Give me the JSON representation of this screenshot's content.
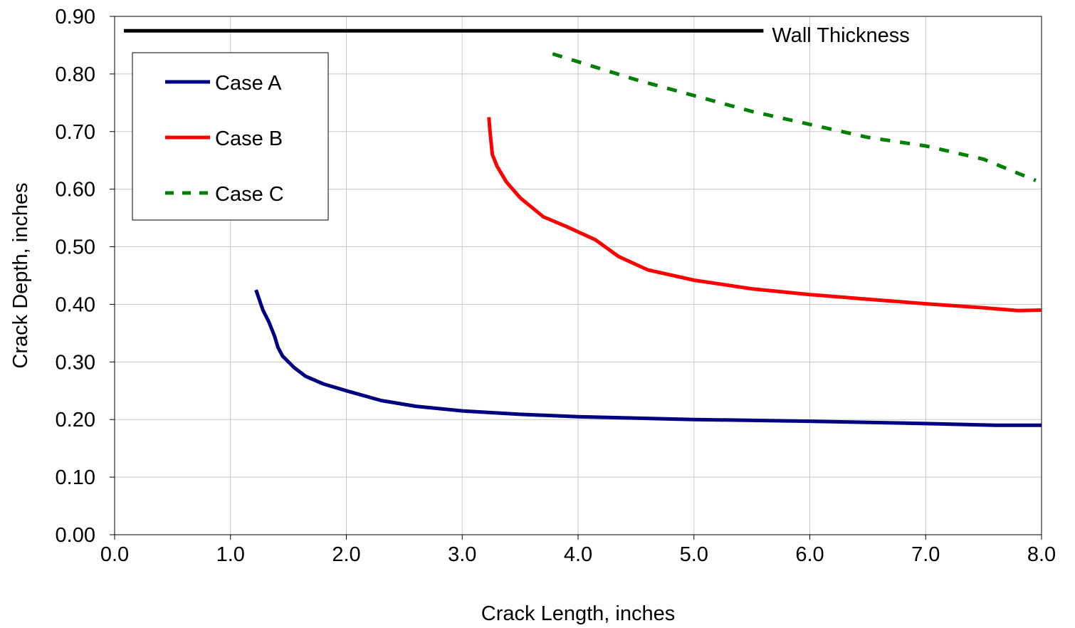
{
  "chart_data": {
    "type": "line",
    "xlabel": "Crack Length, inches",
    "ylabel": "Crack Depth, inches",
    "xlim": [
      0,
      8
    ],
    "ylim": [
      0,
      0.9
    ],
    "x_ticks": [
      "0.0",
      "1.0",
      "2.0",
      "3.0",
      "4.0",
      "5.0",
      "6.0",
      "7.0",
      "8.0"
    ],
    "y_ticks": [
      "0.00",
      "0.10",
      "0.20",
      "0.30",
      "0.40",
      "0.50",
      "0.60",
      "0.70",
      "0.80",
      "0.90"
    ],
    "grid": true,
    "legend_position": "top-left",
    "reference_line": {
      "label": "Wall Thickness",
      "y": 0.875,
      "x": [
        0.08,
        5.6
      ],
      "color": "#000000"
    },
    "series": [
      {
        "name": "Case A",
        "color": "#000080",
        "dash": "solid",
        "points": [
          [
            1.22,
            0.425
          ],
          [
            1.28,
            0.39
          ],
          [
            1.33,
            0.37
          ],
          [
            1.38,
            0.345
          ],
          [
            1.41,
            0.325
          ],
          [
            1.45,
            0.31
          ],
          [
            1.55,
            0.29
          ],
          [
            1.65,
            0.275
          ],
          [
            1.8,
            0.262
          ],
          [
            2.0,
            0.25
          ],
          [
            2.3,
            0.233
          ],
          [
            2.6,
            0.223
          ],
          [
            3.0,
            0.215
          ],
          [
            3.5,
            0.209
          ],
          [
            4.0,
            0.205
          ],
          [
            5.0,
            0.2
          ],
          [
            6.0,
            0.197
          ],
          [
            7.0,
            0.193
          ],
          [
            7.6,
            0.19
          ],
          [
            8.0,
            0.19
          ]
        ]
      },
      {
        "name": "Case B",
        "color": "#ff0000",
        "dash": "solid",
        "points": [
          [
            3.23,
            0.725
          ],
          [
            3.24,
            0.7
          ],
          [
            3.26,
            0.66
          ],
          [
            3.3,
            0.64
          ],
          [
            3.38,
            0.613
          ],
          [
            3.5,
            0.585
          ],
          [
            3.7,
            0.552
          ],
          [
            3.9,
            0.535
          ],
          [
            4.15,
            0.512
          ],
          [
            4.35,
            0.483
          ],
          [
            4.6,
            0.46
          ],
          [
            5.0,
            0.442
          ],
          [
            5.5,
            0.427
          ],
          [
            6.0,
            0.417
          ],
          [
            6.5,
            0.409
          ],
          [
            7.0,
            0.401
          ],
          [
            7.5,
            0.394
          ],
          [
            7.8,
            0.389
          ],
          [
            8.0,
            0.39
          ]
        ]
      },
      {
        "name": "Case C",
        "color": "#008000",
        "dash": "dashed",
        "points": [
          [
            3.78,
            0.835
          ],
          [
            4.5,
            0.79
          ],
          [
            5.5,
            0.735
          ],
          [
            6.5,
            0.69
          ],
          [
            7.0,
            0.675
          ],
          [
            7.5,
            0.652
          ],
          [
            7.95,
            0.615
          ]
        ]
      }
    ]
  }
}
